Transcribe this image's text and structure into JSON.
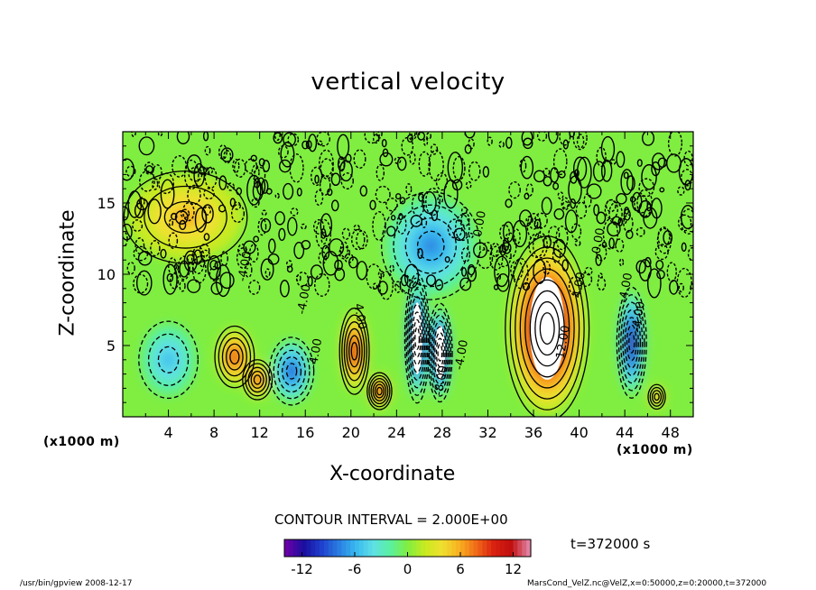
{
  "chart_data": {
    "type": "heatmap",
    "title": "vertical velocity",
    "xlabel": "X-coordinate",
    "ylabel": "Z-coordinate",
    "x_unit_left": "(x1000 m)",
    "x_unit_right": "(x1000 m)",
    "xlim": [
      0,
      50
    ],
    "ylim": [
      0,
      20
    ],
    "x_ticks": [
      4,
      8,
      12,
      16,
      20,
      24,
      28,
      32,
      36,
      40,
      44,
      48
    ],
    "y_ticks": [
      5,
      10,
      15
    ],
    "contour_interval_label": "CONTOUR INTERVAL = 2.000E+00",
    "time_label": "t=372000 s",
    "colorbar": {
      "range": [
        -14,
        14
      ],
      "ticks": [
        -12,
        -6,
        0,
        6,
        12
      ],
      "colors": [
        "#6a00a8",
        "#1a0e9e",
        "#1f3fcc",
        "#2a7be0",
        "#39b8ef",
        "#5ee0e5",
        "#5af0a0",
        "#80ee40",
        "#c8ea20",
        "#f0e030",
        "#f8b020",
        "#f06818",
        "#d82010",
        "#c01010",
        "#e080a0"
      ]
    },
    "features": [
      {
        "label": "updraft",
        "x": 9.8,
        "z": 4.2,
        "value": 8,
        "rx": 1.6,
        "rz": 2.0
      },
      {
        "label": "updraft",
        "x": 11.8,
        "z": 2.6,
        "value": 7,
        "rx": 1.2,
        "rz": 1.3
      },
      {
        "label": "downdraft",
        "x": 14.8,
        "z": 3.2,
        "value": -8,
        "rx": 1.8,
        "rz": 2.2
      },
      {
        "label": "downdraft",
        "x": 4.0,
        "z": 4.0,
        "value": -4,
        "rx": 2.4,
        "rz": 2.5
      },
      {
        "label": "updraft",
        "x": 20.3,
        "z": 4.6,
        "value": 9,
        "rx": 1.2,
        "rz": 2.8
      },
      {
        "label": "updraft",
        "x": 22.5,
        "z": 1.8,
        "value": 9,
        "rx": 1.0,
        "rz": 1.2
      },
      {
        "label": "downdraft",
        "x": 25.8,
        "z": 5.5,
        "value": -14,
        "rx": 1.0,
        "rz": 4.2
      },
      {
        "label": "downdraft",
        "x": 27.8,
        "z": 4.5,
        "value": -14,
        "rx": 1.0,
        "rz": 3.2
      },
      {
        "label": "downdraft",
        "x": 27.0,
        "z": 12.0,
        "value": -5,
        "rx": 4.0,
        "rz": 3.5
      },
      {
        "label": "updraft",
        "x": 37.2,
        "z": 6.2,
        "value": 14,
        "rx": 3.4,
        "rz": 6.0
      },
      {
        "label": "downdraft",
        "x": 44.6,
        "z": 5.2,
        "value": -11,
        "rx": 1.2,
        "rz": 3.6
      },
      {
        "label": "updraft",
        "x": 46.8,
        "z": 1.4,
        "value": 5,
        "rx": 0.7,
        "rz": 0.8
      },
      {
        "label": "updraft",
        "x": 5.5,
        "z": 14.0,
        "value": 3,
        "rx": 5.0,
        "rz": 3.0
      }
    ],
    "contour_labels": [
      {
        "text": "-4.00",
        "x": 11.0,
        "z": 10.5,
        "angle": -80
      },
      {
        "text": "-4.00",
        "x": 16.2,
        "z": 8.2,
        "angle": -80
      },
      {
        "text": "-4.00",
        "x": 17.2,
        "z": 4.4,
        "angle": -80
      },
      {
        "text": "4.00",
        "x": 20.5,
        "z": 7.0,
        "angle": 80
      },
      {
        "text": "-8.00",
        "x": 28.2,
        "z": 2.5,
        "angle": -80
      },
      {
        "text": "-4.00",
        "x": 30.0,
        "z": 4.3,
        "angle": -80
      },
      {
        "text": "0.00",
        "x": 31.6,
        "z": 13.5,
        "angle": -80
      },
      {
        "text": "12.00",
        "x": 38.9,
        "z": 5.2,
        "angle": -80
      },
      {
        "text": "4.00",
        "x": 40.3,
        "z": 9.2,
        "angle": -80
      },
      {
        "text": "0.00",
        "x": 42.0,
        "z": 12.3,
        "angle": -80
      },
      {
        "text": "-4.00",
        "x": 44.4,
        "z": 9.0,
        "angle": -80
      },
      {
        "text": "-4.00",
        "x": 45.5,
        "z": 7.0,
        "angle": -80
      }
    ]
  },
  "footer": {
    "left": "/usr/bin/gpview   2008-12-17",
    "right": "MarsCond_VelZ.nc@VelZ,x=0:50000,z=0:20000,t=372000"
  }
}
